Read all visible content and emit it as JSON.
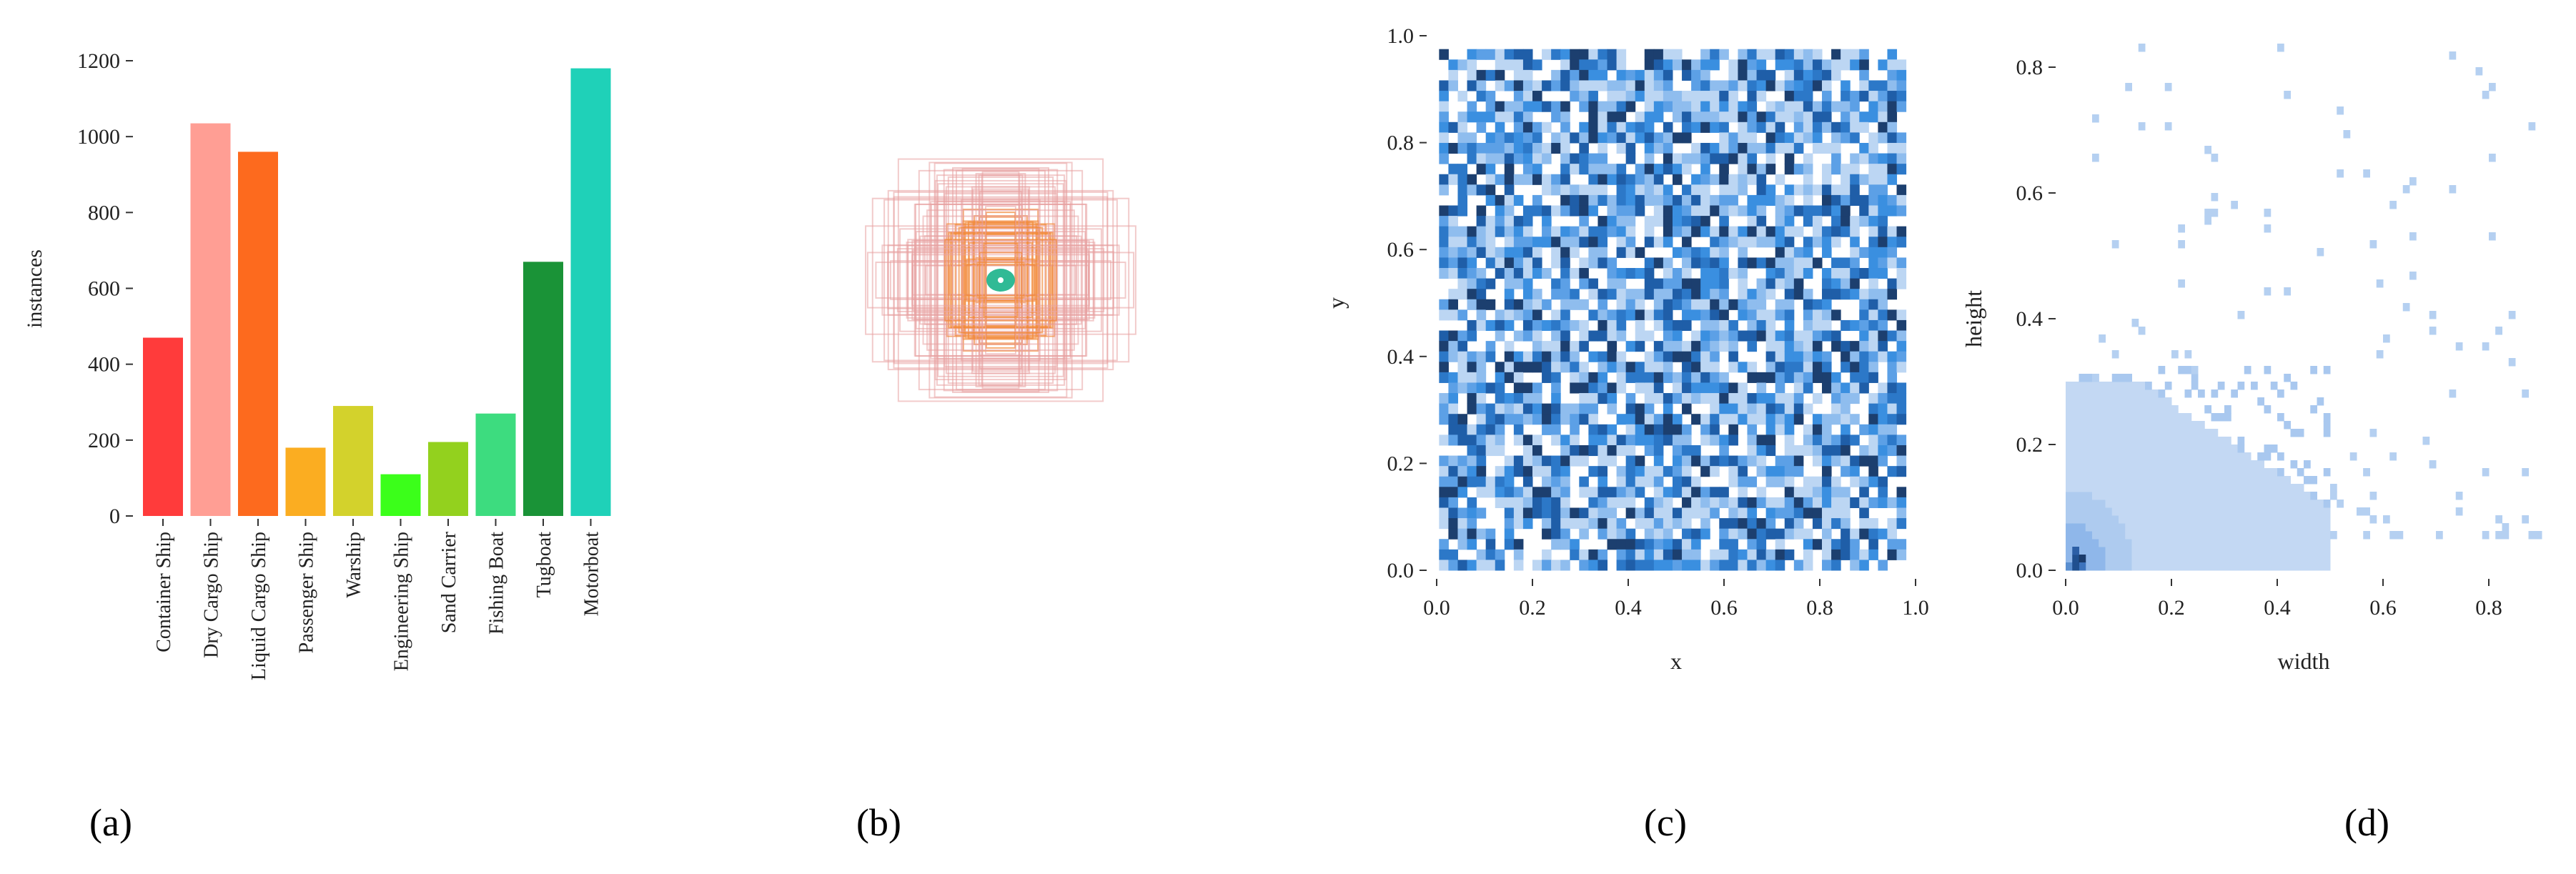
{
  "captions": [
    "(a)",
    "(b)",
    "(c)",
    "(d)"
  ],
  "chart_data": [
    {
      "type": "bar",
      "ylabel": "instances",
      "ylim": [
        0,
        1200
      ],
      "yticks": [
        "0",
        "200",
        "400",
        "600",
        "800",
        "1000",
        "1200"
      ],
      "categories": [
        "Container Ship",
        "Dry Cargo Ship",
        "Liquid Cargo Ship",
        "Passenger Ship",
        "Warship",
        "Engineering Ship",
        "Sand Carrier",
        "Fishing Boat",
        "Tugboat",
        "Motorboat"
      ],
      "values": [
        470,
        1035,
        960,
        180,
        290,
        110,
        195,
        270,
        670,
        1180
      ],
      "colors": [
        "#ff3b3b",
        "#ff9e94",
        "#fd6a1e",
        "#fbad21",
        "#d3d22c",
        "#3bff1a",
        "#93d11e",
        "#3ddc7f",
        "#1a9337",
        "#1fd1b8"
      ]
    },
    {
      "type": "other",
      "description_colors": {
        "boxes_outer": "#e8a0a0",
        "boxes_inner": "#f28a3a",
        "center": "#1ab38a"
      }
    },
    {
      "type": "heatmap",
      "xlabel": "x",
      "ylabel": "y",
      "xlim": [
        0,
        1
      ],
      "ylim": [
        0,
        1
      ],
      "xticks": [
        "0.0",
        "0.2",
        "0.4",
        "0.6",
        "0.8",
        "1.0"
      ],
      "yticks": [
        "0.0",
        "0.2",
        "0.4",
        "0.6",
        "0.8",
        "1.0"
      ],
      "color": "#3a8fe0"
    },
    {
      "type": "heatmap",
      "xlabel": "width",
      "ylabel": "height",
      "xlim": [
        0,
        0.9
      ],
      "ylim": [
        0,
        0.85
      ],
      "xticks": [
        "0.0",
        "0.2",
        "0.4",
        "0.6",
        "0.8"
      ],
      "yticks": [
        "0.0",
        "0.2",
        "0.4",
        "0.6",
        "0.8"
      ],
      "color": "#7fb2ea"
    }
  ]
}
